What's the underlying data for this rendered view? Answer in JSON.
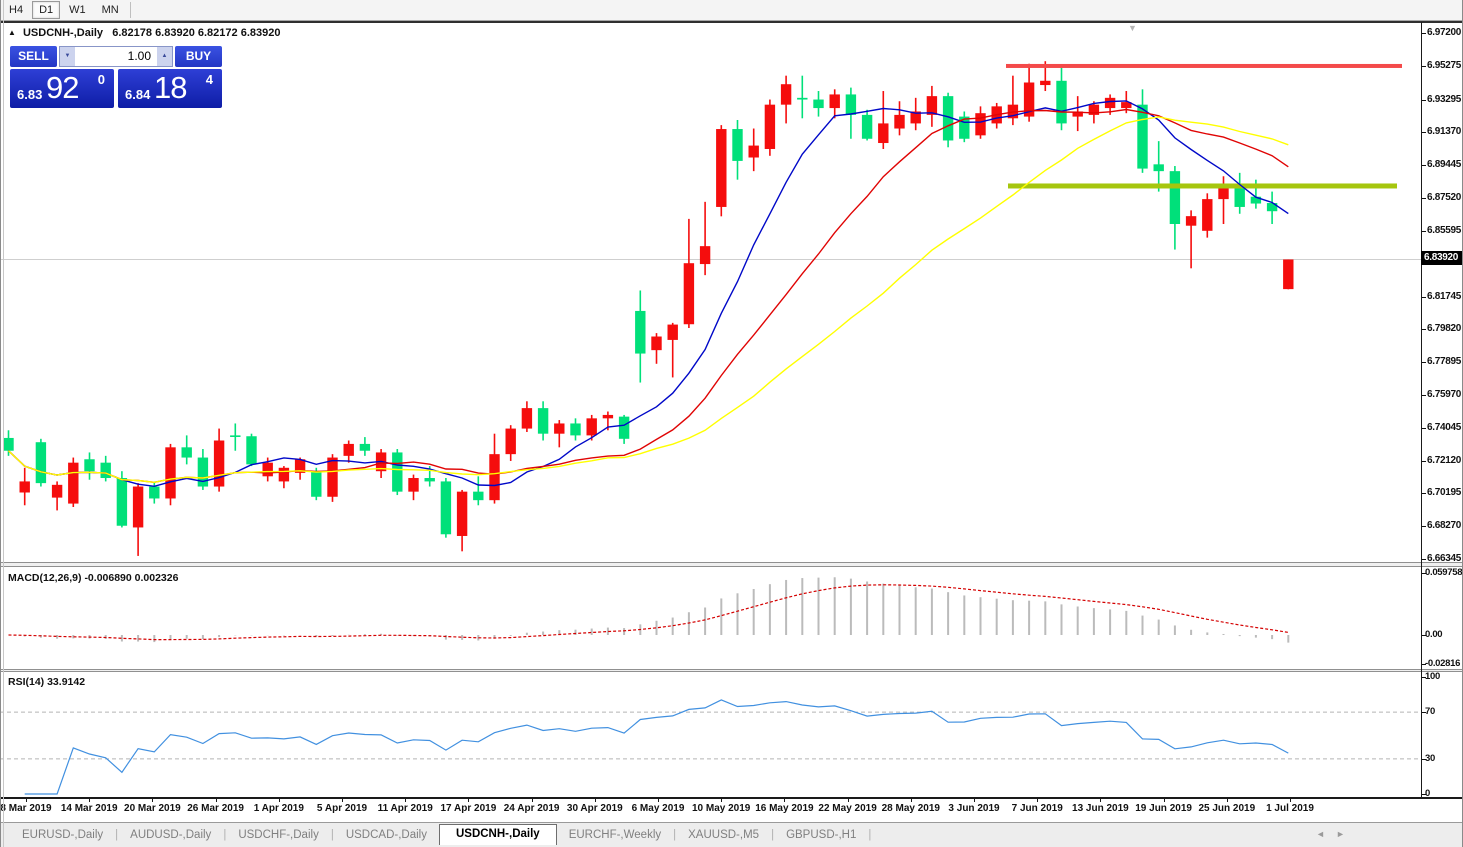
{
  "toolbar": {
    "buttons": [
      "H4",
      "D1",
      "W1",
      "MN"
    ],
    "active": "D1"
  },
  "chart_header": {
    "collapse_icon": "▲",
    "symbol": "USDCNH-,Daily",
    "ohlc": "6.82178 6.83920 6.82172 6.83920"
  },
  "trade_panel": {
    "sell_label": "SELL",
    "buy_label": "BUY",
    "volume": "1.00",
    "spin_down": "▼",
    "spin_up": "▲",
    "sell_price": {
      "small": "6.83",
      "big": "92",
      "sup": "0"
    },
    "buy_price": {
      "small": "6.84",
      "big": "18",
      "sup": "4"
    }
  },
  "price_axis": {
    "labels": [
      "6.97200",
      "6.95275",
      "6.93295",
      "6.91370",
      "6.89445",
      "6.87520",
      "6.85595",
      "6.81745",
      "6.79820",
      "6.77895",
      "6.75970",
      "6.74045",
      "6.72120",
      "6.70195",
      "6.68270",
      "6.66345"
    ],
    "current": "6.83920",
    "current_value": 6.8392
  },
  "macd": {
    "label": "MACD(12,26,9) -0.006890 0.002326",
    "axis_labels": [
      "0.059758",
      "0.00",
      "-0.02816"
    ],
    "axis_values": [
      0.059758,
      0.0,
      -0.02816
    ],
    "histogram_color": "#bbbbbb",
    "signal_color": "#d40000"
  },
  "rsi": {
    "label": "RSI(14) 33.9142",
    "axis_labels": [
      "100",
      "70",
      "30",
      "0"
    ],
    "axis_values": [
      100,
      70,
      30,
      0
    ],
    "levels": [
      70,
      30
    ],
    "line_color": "#4190e0"
  },
  "tabs": {
    "items": [
      {
        "label": "EURUSD-,Daily",
        "active": false
      },
      {
        "label": "AUDUSD-,Daily",
        "active": false
      },
      {
        "label": "USDCHF-,Daily",
        "active": false
      },
      {
        "label": "USDCAD-,Daily",
        "active": false
      },
      {
        "label": "USDCNH-,Daily",
        "active": true
      },
      {
        "label": "EURCHF-,Weekly",
        "active": false
      },
      {
        "label": "XAUUSD-,M5",
        "active": false
      },
      {
        "label": "GBPUSD-,H1",
        "active": false
      }
    ],
    "scroll_left": "◄",
    "scroll_right": "►"
  },
  "chart_data": {
    "type": "candlestick",
    "title": "USDCNH-,Daily",
    "ylim": [
      6.66345,
      6.972
    ],
    "x_labels": [
      "8 Mar 2019",
      "14 Mar 2019",
      "20 Mar 2019",
      "26 Mar 2019",
      "1 Apr 2019",
      "5 Apr 2019",
      "11 Apr 2019",
      "17 Apr 2019",
      "24 Apr 2019",
      "30 Apr 2019",
      "6 May 2019",
      "10 May 2019",
      "16 May 2019",
      "22 May 2019",
      "28 May 2019",
      "3 Jun 2019",
      "7 Jun 2019",
      "13 Jun 2019",
      "19 Jun 2019",
      "25 Jun 2019",
      "1 Jul 2019"
    ],
    "bull_color": "#f50d0d",
    "bear_color": "#00e07a",
    "price_line_color": "#cfcfcf",
    "ohlc": [
      [
        6.7345,
        6.739,
        6.724,
        6.727
      ],
      [
        6.7025,
        6.717,
        6.695,
        6.709
      ],
      [
        6.732,
        6.734,
        6.706,
        6.708
      ],
      [
        6.6995,
        6.709,
        6.692,
        6.707
      ],
      [
        6.696,
        6.723,
        6.694,
        6.72
      ],
      [
        6.722,
        6.726,
        6.71,
        6.715
      ],
      [
        6.72,
        6.724,
        6.709,
        6.711
      ],
      [
        6.711,
        6.715,
        6.682,
        6.683
      ],
      [
        6.682,
        6.708,
        6.6653,
        6.706
      ],
      [
        6.706,
        6.709,
        6.696,
        6.699
      ],
      [
        6.699,
        6.731,
        6.695,
        6.729
      ],
      [
        6.729,
        6.736,
        6.719,
        6.723
      ],
      [
        6.723,
        6.728,
        6.704,
        6.706
      ],
      [
        6.706,
        6.74,
        6.703,
        6.733
      ],
      [
        6.736,
        6.743,
        6.727,
        6.7355
      ],
      [
        6.7355,
        6.737,
        6.718,
        6.719
      ],
      [
        6.712,
        6.723,
        6.709,
        6.72
      ],
      [
        6.709,
        6.718,
        6.705,
        6.717
      ],
      [
        6.714,
        6.723,
        6.71,
        6.722
      ],
      [
        6.715,
        6.717,
        6.698,
        6.7
      ],
      [
        6.7,
        6.725,
        6.697,
        6.723
      ],
      [
        6.724,
        6.733,
        6.72,
        6.731
      ],
      [
        6.731,
        6.735,
        6.724,
        6.727
      ],
      [
        6.715,
        6.728,
        6.711,
        6.726
      ],
      [
        6.726,
        6.728,
        6.701,
        6.703
      ],
      [
        6.703,
        6.713,
        6.698,
        6.711
      ],
      [
        6.711,
        6.718,
        6.706,
        6.709
      ],
      [
        6.709,
        6.711,
        6.676,
        6.678
      ],
      [
        6.677,
        6.704,
        6.668,
        6.703
      ],
      [
        6.703,
        6.712,
        6.695,
        6.698
      ],
      [
        6.698,
        6.737,
        6.696,
        6.725
      ],
      [
        6.725,
        6.742,
        6.721,
        6.74
      ],
      [
        6.74,
        6.756,
        6.738,
        6.752
      ],
      [
        6.752,
        6.756,
        6.733,
        6.737
      ],
      [
        6.737,
        6.745,
        6.729,
        6.743
      ],
      [
        6.743,
        6.746,
        6.733,
        6.736
      ],
      [
        6.736,
        6.748,
        6.733,
        6.746
      ],
      [
        6.746,
        6.75,
        6.739,
        6.748
      ],
      [
        6.747,
        6.748,
        6.731,
        6.734
      ],
      [
        6.809,
        6.821,
        6.767,
        6.784
      ],
      [
        6.786,
        6.796,
        6.778,
        6.794
      ],
      [
        6.792,
        6.802,
        6.77,
        6.801
      ],
      [
        6.8012,
        6.863,
        6.799,
        6.837
      ],
      [
        6.8365,
        6.873,
        6.83,
        6.847
      ],
      [
        6.87,
        6.918,
        6.8645,
        6.9157
      ],
      [
        6.9157,
        6.921,
        6.886,
        6.897
      ],
      [
        6.899,
        6.916,
        6.891,
        6.906
      ],
      [
        6.904,
        6.933,
        6.9,
        6.93
      ],
      [
        6.93,
        6.947,
        6.919,
        6.942
      ],
      [
        6.934,
        6.947,
        6.922,
        6.933
      ],
      [
        6.933,
        6.938,
        6.923,
        6.928
      ],
      [
        6.928,
        6.939,
        6.922,
        6.936
      ],
      [
        6.936,
        6.94,
        6.91,
        6.924
      ],
      [
        6.924,
        6.927,
        6.909,
        6.91
      ],
      [
        6.9075,
        6.938,
        6.904,
        6.919
      ],
      [
        6.916,
        6.932,
        6.912,
        6.924
      ],
      [
        6.919,
        6.934,
        6.915,
        6.926
      ],
      [
        6.924,
        6.941,
        6.917,
        6.935
      ],
      [
        6.935,
        6.937,
        6.905,
        6.909
      ],
      [
        6.923,
        6.926,
        6.908,
        6.91
      ],
      [
        6.912,
        6.929,
        6.91,
        6.925
      ],
      [
        6.919,
        6.931,
        6.916,
        6.929
      ],
      [
        6.922,
        6.947,
        6.918,
        6.93
      ],
      [
        6.923,
        6.954,
        6.92,
        6.943
      ],
      [
        6.9415,
        6.9555,
        6.938,
        6.944
      ],
      [
        6.944,
        6.953,
        6.915,
        6.919
      ],
      [
        6.923,
        6.935,
        6.9145,
        6.926
      ],
      [
        6.924,
        6.932,
        6.919,
        6.93
      ],
      [
        6.928,
        6.936,
        6.924,
        6.934
      ],
      [
        6.928,
        6.938,
        6.925,
        6.9315
      ],
      [
        6.93,
        6.939,
        6.89,
        6.8925
      ],
      [
        6.895,
        6.9086,
        6.879,
        6.891
      ],
      [
        6.891,
        6.894,
        6.845,
        6.86
      ],
      [
        6.859,
        6.868,
        6.834,
        6.8646
      ],
      [
        6.856,
        6.878,
        6.852,
        6.8746
      ],
      [
        6.8746,
        6.888,
        6.86,
        6.881
      ],
      [
        6.881,
        6.89,
        6.866,
        6.87
      ],
      [
        6.876,
        6.886,
        6.869,
        6.872
      ],
      [
        6.8723,
        6.879,
        6.86,
        6.8675
      ],
      [
        6.8218,
        6.8392,
        6.8217,
        6.8392
      ]
    ],
    "overlays": {
      "ma_fast": {
        "period": 8,
        "color": "#0008c8"
      },
      "ma_mid": {
        "period": 16,
        "color": "#e00404"
      },
      "ma_slow": {
        "period": 28,
        "color": "#ffff00"
      },
      "resistance": {
        "value": 6.9527,
        "color": "#f44a4a"
      },
      "support": {
        "value": 6.8823,
        "color": "#a6c60e"
      }
    }
  }
}
